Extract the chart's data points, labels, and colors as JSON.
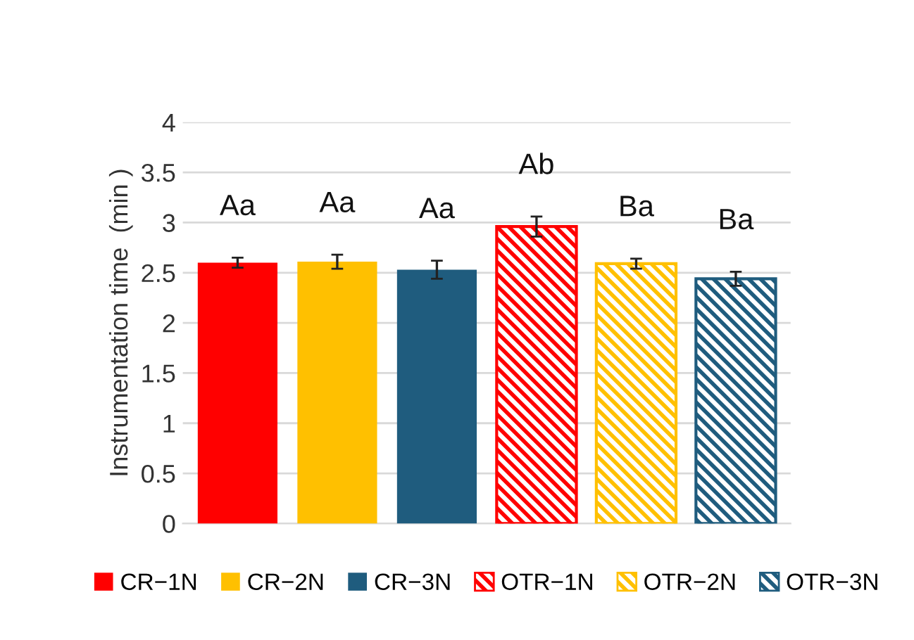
{
  "chart_data": {
    "type": "bar",
    "ylabel": "Instrumentation time  (min )",
    "categories": [
      null,
      null,
      null,
      null,
      null,
      null
    ],
    "series": [
      {
        "name": "CR−1N",
        "color": "#ff0000",
        "values": [
          2.6,
          null,
          null,
          null,
          null,
          null
        ],
        "errors": [
          0.05,
          null,
          null,
          null,
          null,
          null
        ]
      },
      {
        "name": "CR−2N",
        "color": "#ffc000",
        "values": [
          null,
          2.61,
          null,
          null,
          null,
          null
        ],
        "errors": [
          null,
          0.07,
          null,
          null,
          null,
          null
        ]
      },
      {
        "name": "CR−3N",
        "color": "#1f5c7e",
        "values": [
          null,
          null,
          2.53,
          null,
          null,
          null
        ],
        "errors": [
          null,
          null,
          0.09,
          null,
          null,
          null
        ]
      },
      {
        "name": "OTR−1N",
        "color": "#ff0000",
        "values": [
          null,
          null,
          null,
          2.96,
          null,
          null
        ],
        "errors": [
          null,
          null,
          null,
          0.1,
          null,
          null
        ]
      },
      {
        "name": "OTR−2N",
        "color": "#ffc000",
        "values": [
          null,
          null,
          null,
          null,
          2.59,
          null
        ],
        "errors": [
          null,
          null,
          null,
          null,
          0.05,
          null
        ]
      },
      {
        "name": "OTR−3N",
        "color": "#1f5c7e",
        "values": [
          null,
          null,
          null,
          null,
          null,
          2.44
        ],
        "errors": [
          null,
          null,
          null,
          null,
          null,
          0.07
        ]
      }
    ],
    "annotations": [
      "Aa",
      "Aa",
      "Aa",
      "Ab",
      "Ba",
      "Ba"
    ],
    "ylim": [
      0,
      4
    ],
    "yticks": [
      0,
      0.5,
      1,
      1.5,
      2,
      2.5,
      3,
      3.5,
      4
    ],
    "grid": "y",
    "legend": "bottom"
  }
}
